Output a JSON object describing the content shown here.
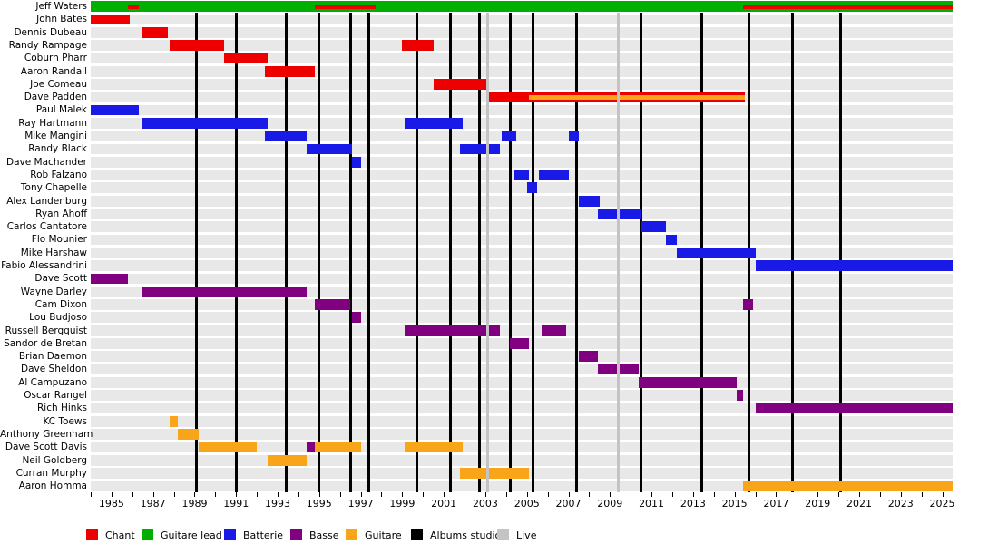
{
  "chart_data": {
    "type": "timeline",
    "x_axis": {
      "start": 1984,
      "end": 2025.5,
      "tick_years_from": 1984,
      "tick_years_to": 2025,
      "tick_labels": [
        "1985",
        "1987",
        "1989",
        "1991",
        "1993",
        "1995",
        "1997",
        "1999",
        "2001",
        "2003",
        "2005",
        "2007",
        "2009",
        "2011",
        "2013",
        "2015",
        "2017",
        "2019",
        "2021",
        "2023",
        "2025"
      ],
      "grid": "vertical event lines only"
    },
    "colors": {
      "chant": "#ee0000",
      "guitare_lead": "#00b000",
      "batterie": "#1a1ae6",
      "basse": "#800080",
      "guitare": "#f9a51a",
      "albums_studio": "#000000",
      "live": "#c4c4c4",
      "row_band": "#e8e8e8"
    },
    "legend": [
      {
        "label": "Chant",
        "color_key": "chant"
      },
      {
        "label": "Guitare lead",
        "color_key": "guitare_lead"
      },
      {
        "label": "Batterie",
        "color_key": "batterie"
      },
      {
        "label": "Basse",
        "color_key": "basse"
      },
      {
        "label": "Guitare",
        "color_key": "guitare"
      },
      {
        "label": "Albums studio",
        "color_key": "albums_studio"
      },
      {
        "label": "Live",
        "color_key": "live"
      }
    ],
    "albums_studio_years": [
      1989.1,
      1991.0,
      1993.4,
      1995.0,
      1996.5,
      1997.4,
      1999.7,
      2001.3,
      2002.7,
      2004.2,
      2005.3,
      2007.4,
      2010.5,
      2013.4,
      2015.7,
      2017.8,
      2020.1
    ],
    "live_years": [
      2003.1,
      2009.4
    ],
    "members": [
      {
        "name": "Jeff Waters",
        "bars": [
          {
            "role": "guitare_lead",
            "start": 1984,
            "end": 2025.5
          },
          {
            "role": "chant",
            "start": 1985.8,
            "end": 1986.3,
            "overlay": true
          },
          {
            "role": "chant",
            "start": 1994.8,
            "end": 1997.7,
            "overlay": true
          },
          {
            "role": "chant",
            "start": 2015.4,
            "end": 2025.5,
            "overlay": true
          }
        ]
      },
      {
        "name": "John Bates",
        "bars": [
          {
            "role": "chant",
            "start": 1984,
            "end": 1985.9
          }
        ]
      },
      {
        "name": "Dennis Dubeau",
        "bars": [
          {
            "role": "chant",
            "start": 1986.5,
            "end": 1987.7
          }
        ]
      },
      {
        "name": "Randy Rampage",
        "bars": [
          {
            "role": "chant",
            "start": 1987.8,
            "end": 1990.4
          },
          {
            "role": "chant",
            "start": 1999.0,
            "end": 2000.5
          }
        ]
      },
      {
        "name": "Coburn Pharr",
        "bars": [
          {
            "role": "chant",
            "start": 1990.4,
            "end": 1992.5
          }
        ]
      },
      {
        "name": "Aaron Randall",
        "bars": [
          {
            "role": "chant",
            "start": 1992.4,
            "end": 1994.8
          }
        ]
      },
      {
        "name": "Joe Comeau",
        "bars": [
          {
            "role": "chant",
            "start": 2000.5,
            "end": 2003.1
          }
        ]
      },
      {
        "name": "Dave Padden",
        "bars": [
          {
            "role": "chant",
            "start": 2003.1,
            "end": 2015.5
          },
          {
            "role": "guitare",
            "start": 2005.1,
            "end": 2015.5,
            "overlay": true
          }
        ]
      },
      {
        "name": "Paul Malek",
        "bars": [
          {
            "role": "batterie",
            "start": 1984,
            "end": 1986.3
          }
        ]
      },
      {
        "name": "Ray Hartmann",
        "bars": [
          {
            "role": "batterie",
            "start": 1986.5,
            "end": 1992.5
          },
          {
            "role": "batterie",
            "start": 1999.1,
            "end": 2001.9
          }
        ]
      },
      {
        "name": "Mike Mangini",
        "bars": [
          {
            "role": "batterie",
            "start": 1992.4,
            "end": 1994.4
          },
          {
            "role": "batterie",
            "start": 2003.8,
            "end": 2004.5
          },
          {
            "role": "batterie",
            "start": 2007.0,
            "end": 2007.5
          }
        ]
      },
      {
        "name": "Randy Black",
        "bars": [
          {
            "role": "batterie",
            "start": 1994.4,
            "end": 1996.6
          },
          {
            "role": "batterie",
            "start": 2001.8,
            "end": 2003.7
          }
        ]
      },
      {
        "name": "Dave Machander",
        "bars": [
          {
            "role": "batterie",
            "start": 1996.6,
            "end": 1997.0
          }
        ]
      },
      {
        "name": "Rob Falzano",
        "bars": [
          {
            "role": "batterie",
            "start": 2004.4,
            "end": 2005.1
          },
          {
            "role": "batterie",
            "start": 2005.6,
            "end": 2007.0
          }
        ]
      },
      {
        "name": "Tony Chapelle",
        "bars": [
          {
            "role": "batterie",
            "start": 2005.0,
            "end": 2005.5
          }
        ]
      },
      {
        "name": "Alex Landenburg",
        "bars": [
          {
            "role": "batterie",
            "start": 2007.5,
            "end": 2008.5
          }
        ]
      },
      {
        "name": "Ryan Ahoff",
        "bars": [
          {
            "role": "batterie",
            "start": 2008.4,
            "end": 2010.5
          }
        ]
      },
      {
        "name": "Carlos Cantatore",
        "bars": [
          {
            "role": "batterie",
            "start": 2010.5,
            "end": 2011.7
          }
        ]
      },
      {
        "name": "Flo Mounier",
        "bars": [
          {
            "role": "batterie",
            "start": 2011.7,
            "end": 2012.2
          }
        ]
      },
      {
        "name": "Mike Harshaw",
        "bars": [
          {
            "role": "batterie",
            "start": 2012.2,
            "end": 2016.0
          }
        ]
      },
      {
        "name": "Fabio Alessandrini",
        "bars": [
          {
            "role": "batterie",
            "start": 2016.0,
            "end": 2025.5
          }
        ]
      },
      {
        "name": "Dave Scott",
        "bars": [
          {
            "role": "basse",
            "start": 1984,
            "end": 1985.8
          }
        ]
      },
      {
        "name": "Wayne Darley",
        "bars": [
          {
            "role": "basse",
            "start": 1986.5,
            "end": 1994.4
          }
        ]
      },
      {
        "name": "Cam Dixon",
        "bars": [
          {
            "role": "basse",
            "start": 1994.8,
            "end": 1996.5
          },
          {
            "role": "basse",
            "start": 2015.4,
            "end": 2015.9
          }
        ]
      },
      {
        "name": "Lou Budjoso",
        "bars": [
          {
            "role": "basse",
            "start": 1996.6,
            "end": 1997.0
          }
        ]
      },
      {
        "name": "Russell Bergquist",
        "bars": [
          {
            "role": "basse",
            "start": 1999.1,
            "end": 2003.7
          },
          {
            "role": "basse",
            "start": 2005.7,
            "end": 2006.9
          }
        ]
      },
      {
        "name": "Sandor de Bretan",
        "bars": [
          {
            "role": "basse",
            "start": 2004.2,
            "end": 2005.1
          }
        ]
      },
      {
        "name": "Brian Daemon",
        "bars": [
          {
            "role": "basse",
            "start": 2007.5,
            "end": 2008.4
          }
        ]
      },
      {
        "name": "Dave Sheldon",
        "bars": [
          {
            "role": "basse",
            "start": 2008.4,
            "end": 2010.4
          }
        ]
      },
      {
        "name": "Al Campuzano",
        "bars": [
          {
            "role": "basse",
            "start": 2010.4,
            "end": 2015.1
          }
        ]
      },
      {
        "name": "Oscar Rangel",
        "bars": [
          {
            "role": "basse",
            "start": 2015.1,
            "end": 2015.4
          }
        ]
      },
      {
        "name": "Rich Hinks",
        "bars": [
          {
            "role": "basse",
            "start": 2016.0,
            "end": 2025.5
          }
        ]
      },
      {
        "name": "KC Toews",
        "bars": [
          {
            "role": "guitare",
            "start": 1987.8,
            "end": 1988.2
          }
        ]
      },
      {
        "name": "Anthony Greenham",
        "bars": [
          {
            "role": "guitare",
            "start": 1988.2,
            "end": 1989.2
          }
        ]
      },
      {
        "name": "Dave Scott Davis",
        "bars": [
          {
            "role": "guitare",
            "start": 1989.2,
            "end": 1992.0
          },
          {
            "role": "basse",
            "start": 1994.4,
            "end": 1994.8
          },
          {
            "role": "guitare",
            "start": 1994.8,
            "end": 1997.0
          },
          {
            "role": "guitare",
            "start": 1999.1,
            "end": 2001.9
          }
        ]
      },
      {
        "name": "Neil Goldberg",
        "bars": [
          {
            "role": "guitare",
            "start": 1992.5,
            "end": 1994.4
          }
        ]
      },
      {
        "name": "Curran Murphy",
        "bars": [
          {
            "role": "guitare",
            "start": 2001.8,
            "end": 2005.1
          }
        ]
      },
      {
        "name": "Aaron Homma",
        "bars": [
          {
            "role": "guitare",
            "start": 2015.4,
            "end": 2025.5
          }
        ]
      }
    ]
  }
}
